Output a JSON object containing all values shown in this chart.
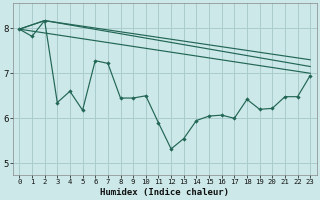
{
  "xlabel": "Humidex (Indice chaleur)",
  "bg_color": "#cce8e8",
  "grid_color": "#aacccc",
  "line_color": "#226655",
  "xlim": [
    -0.5,
    23.5
  ],
  "ylim": [
    4.75,
    8.55
  ],
  "xticks": [
    0,
    1,
    2,
    3,
    4,
    5,
    6,
    7,
    8,
    9,
    10,
    11,
    12,
    13,
    14,
    15,
    16,
    17,
    18,
    19,
    20,
    21,
    22,
    23
  ],
  "yticks": [
    5,
    6,
    7,
    8
  ],
  "jagged_x": [
    0,
    1,
    2,
    3,
    4,
    5,
    6,
    7,
    8,
    9,
    10,
    11,
    12,
    13,
    14,
    15,
    16,
    17,
    18,
    19,
    20,
    21,
    22,
    23
  ],
  "jagged_y": [
    7.98,
    7.82,
    8.17,
    6.35,
    6.6,
    6.18,
    7.28,
    7.22,
    6.45,
    6.45,
    6.5,
    5.9,
    5.32,
    5.55,
    5.95,
    6.05,
    6.07,
    6.0,
    6.42,
    6.2,
    6.22,
    6.48,
    6.48,
    6.95
  ],
  "trend1_x": [
    0,
    23
  ],
  "trend1_y": [
    7.98,
    7.0
  ],
  "trend2_x": [
    0,
    2,
    23
  ],
  "trend2_y": [
    7.98,
    8.17,
    7.15
  ],
  "trend3_x": [
    0,
    2,
    23
  ],
  "trend3_y": [
    7.98,
    8.17,
    7.3
  ]
}
